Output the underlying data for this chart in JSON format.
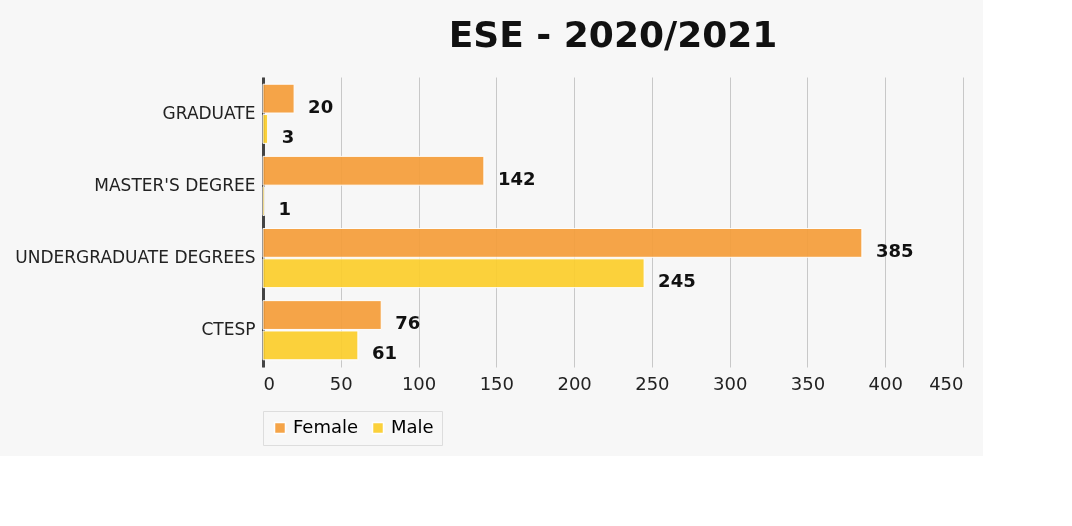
{
  "chart_data": {
    "type": "bar",
    "orientation": "horizontal",
    "title": "ESE - 2020/2021",
    "categories": [
      "GRADUATE",
      "MASTER'S DEGREE",
      "UNDERGRADUATE DEGREES",
      "CTESP"
    ],
    "series": [
      {
        "name": "Female",
        "color": "#f59e3a",
        "values": [
          20,
          142,
          385,
          76
        ]
      },
      {
        "name": "Male",
        "color": "#fcce2c",
        "values": [
          3,
          1,
          245,
          61
        ]
      }
    ],
    "xlim": [
      0,
      450
    ],
    "xticks": [
      0,
      50,
      100,
      150,
      200,
      250,
      300,
      350,
      400,
      450
    ],
    "grid": "x",
    "legend": "bottom",
    "data_labels": true
  }
}
